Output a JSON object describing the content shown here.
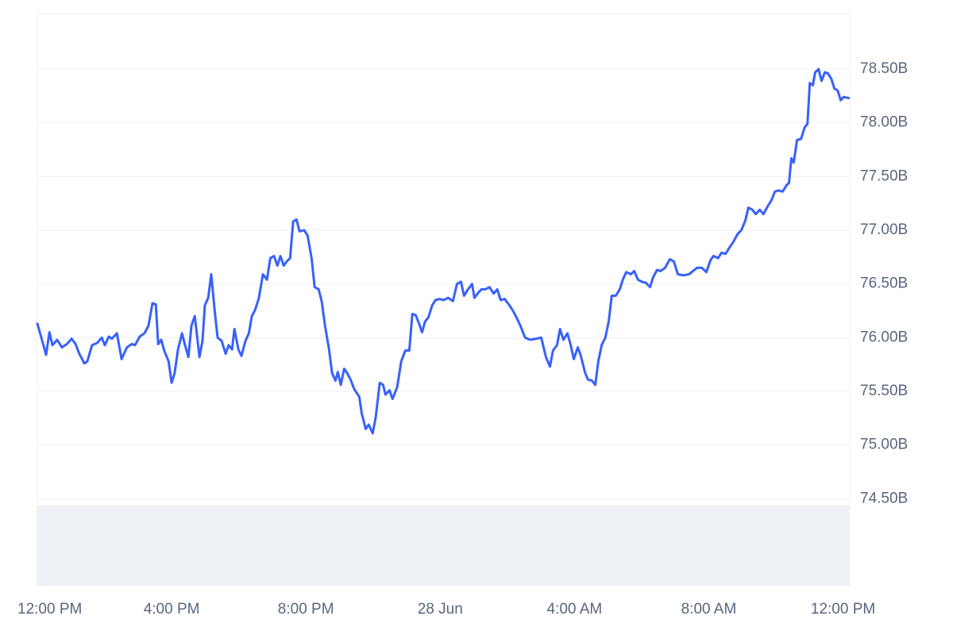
{
  "chart_data": {
    "type": "line",
    "x": [
      0,
      0.12,
      0.26,
      0.36,
      0.45,
      0.59,
      0.73,
      0.88,
      1.02,
      1.14,
      1.25,
      1.4,
      1.49,
      1.63,
      1.78,
      1.92,
      2.01,
      2.13,
      2.22,
      2.37,
      2.51,
      2.67,
      2.81,
      2.91,
      3.05,
      3.19,
      3.31,
      3.43,
      3.53,
      3.6,
      3.69,
      3.79,
      3.91,
      4,
      4.09,
      4.19,
      4.31,
      4.4,
      4.5,
      4.59,
      4.69,
      4.83,
      4.92,
      4.99,
      5.09,
      5.18,
      5.28,
      5.37,
      5.49,
      5.61,
      5.7,
      5.8,
      5.87,
      5.99,
      6.08,
      6.2,
      6.3,
      6.39,
      6.49,
      6.6,
      6.72,
      6.84,
      6.94,
      7.05,
      7.15,
      7.24,
      7.34,
      7.43,
      7.53,
      7.62,
      7.72,
      7.81,
      7.95,
      8.05,
      8.17,
      8.26,
      8.38,
      8.47,
      8.57,
      8.69,
      8.78,
      8.88,
      8.95,
      9.04,
      9.14,
      9.23,
      9.33,
      9.44,
      9.59,
      9.66,
      9.78,
      9.87,
      9.99,
      10.08,
      10.2,
      10.3,
      10.37,
      10.49,
      10.58,
      10.72,
      10.84,
      10.96,
      11.08,
      11.17,
      11.27,
      11.36,
      11.46,
      11.55,
      11.65,
      11.76,
      11.86,
      11.98,
      12.1,
      12.24,
      12.38,
      12.5,
      12.62,
      12.71,
      12.83,
      12.95,
      13.02,
      13.14,
      13.23,
      13.35,
      13.47,
      13.59,
      13.7,
      13.8,
      13.92,
      14.04,
      14.15,
      14.27,
      14.39,
      14.53,
      14.68,
      14.86,
      15.01,
      15.15,
      15.27,
      15.36,
      15.48,
      15.57,
      15.67,
      15.79,
      15.88,
      15.98,
      16.1,
      16.19,
      16.31,
      16.4,
      16.52,
      16.62,
      16.71,
      16.81,
      16.92,
      17.02,
      17.11,
      17.23,
      17.35,
      17.44,
      17.54,
      17.68,
      17.78,
      17.89,
      18.01,
      18.13,
      18.25,
      18.34,
      18.46,
      18.56,
      18.7,
      18.84,
      18.96,
      19.08,
      19.24,
      19.41,
      19.53,
      19.65,
      19.79,
      19.93,
      20.05,
      20.14,
      20.28,
      20.38,
      20.5,
      20.62,
      20.73,
      20.85,
      20.97,
      21.09,
      21.18,
      21.3,
      21.4,
      21.52,
      21.63,
      21.75,
      21.87,
      21.97,
      22.08,
      22.2,
      22.32,
      22.39,
      22.46,
      22.53,
      22.63,
      22.75,
      22.86,
      22.94,
      23.01,
      23.1,
      23.17,
      23.27,
      23.36,
      23.46,
      23.55,
      23.65,
      23.74,
      23.84,
      23.93,
      24.02,
      24.17
    ],
    "series": [
      {
        "color": "#3861fb",
        "values": [
          76.13,
          76.0,
          75.84,
          76.05,
          75.93,
          75.98,
          75.91,
          75.94,
          75.99,
          75.94,
          75.85,
          75.76,
          75.78,
          75.93,
          75.95,
          76.0,
          75.93,
          76.01,
          75.99,
          76.04,
          75.8,
          75.91,
          75.94,
          75.93,
          76.01,
          76.04,
          76.11,
          76.32,
          76.31,
          75.94,
          75.98,
          75.87,
          75.78,
          75.58,
          75.67,
          75.89,
          76.04,
          75.93,
          75.82,
          76.11,
          76.2,
          75.82,
          75.97,
          76.3,
          76.37,
          76.59,
          76.26,
          76.0,
          75.97,
          75.85,
          75.93,
          75.89,
          76.08,
          75.89,
          75.83,
          75.97,
          76.04,
          76.2,
          76.26,
          76.37,
          76.59,
          76.54,
          76.74,
          76.76,
          76.67,
          76.76,
          76.67,
          76.71,
          76.74,
          77.08,
          77.1,
          76.99,
          77.0,
          76.95,
          76.74,
          76.47,
          76.45,
          76.34,
          76.11,
          75.89,
          75.67,
          75.6,
          75.68,
          75.56,
          75.71,
          75.67,
          75.61,
          75.52,
          75.45,
          75.3,
          75.15,
          75.19,
          75.11,
          75.26,
          75.58,
          75.56,
          75.47,
          75.51,
          75.43,
          75.54,
          75.78,
          75.88,
          75.88,
          76.22,
          76.21,
          76.14,
          76.05,
          76.15,
          76.19,
          76.3,
          76.35,
          76.36,
          76.35,
          76.37,
          76.34,
          76.5,
          76.52,
          76.39,
          76.45,
          76.5,
          76.37,
          76.42,
          76.45,
          76.45,
          76.47,
          76.41,
          76.45,
          76.35,
          76.36,
          76.31,
          76.26,
          76.19,
          76.11,
          76.0,
          75.98,
          75.99,
          76.0,
          75.82,
          75.73,
          75.88,
          75.93,
          76.08,
          75.98,
          76.04,
          75.94,
          75.8,
          75.91,
          75.83,
          75.68,
          75.61,
          75.6,
          75.56,
          75.78,
          75.93,
          76.0,
          76.15,
          76.39,
          76.39,
          76.45,
          76.54,
          76.61,
          76.59,
          76.62,
          76.54,
          76.52,
          76.51,
          76.47,
          76.56,
          76.63,
          76.62,
          76.65,
          76.73,
          76.71,
          76.59,
          76.58,
          76.59,
          76.62,
          76.65,
          76.65,
          76.61,
          76.72,
          76.76,
          76.74,
          76.79,
          76.78,
          76.84,
          76.89,
          76.96,
          77.0,
          77.09,
          77.21,
          77.19,
          77.15,
          77.19,
          77.15,
          77.22,
          77.28,
          77.36,
          77.37,
          77.36,
          77.42,
          77.44,
          77.67,
          77.63,
          77.84,
          77.85,
          77.96,
          77.99,
          78.37,
          78.35,
          78.47,
          78.5,
          78.39,
          78.47,
          78.46,
          78.41,
          78.32,
          78.3,
          78.21,
          78.24,
          78.23
        ]
      }
    ],
    "xlim": [
      0,
      24.2
    ],
    "xticks": [
      {
        "value": 0,
        "label": "12:00 PM"
      },
      {
        "value": 4,
        "label": "4:00 PM"
      },
      {
        "value": 8,
        "label": "8:00 PM"
      },
      {
        "value": 12,
        "label": "28 Jun"
      },
      {
        "value": 16,
        "label": "4:00 AM"
      },
      {
        "value": 20,
        "label": "8:00 AM"
      },
      {
        "value": 24,
        "label": "12:00 PM"
      }
    ],
    "ylim": [
      73.69,
      79.01
    ],
    "yticks": [
      {
        "value": 74.5,
        "label": "74.50B"
      },
      {
        "value": 75,
        "label": "75.00B"
      },
      {
        "value": 75.5,
        "label": "75.50B"
      },
      {
        "value": 76,
        "label": "76.00B"
      },
      {
        "value": 76.5,
        "label": "76.50B"
      },
      {
        "value": 77,
        "label": "77.00B"
      },
      {
        "value": 77.5,
        "label": "77.50B"
      },
      {
        "value": 78,
        "label": "78.00B"
      },
      {
        "value": 78.5,
        "label": "78.50B"
      }
    ],
    "grid": true
  }
}
